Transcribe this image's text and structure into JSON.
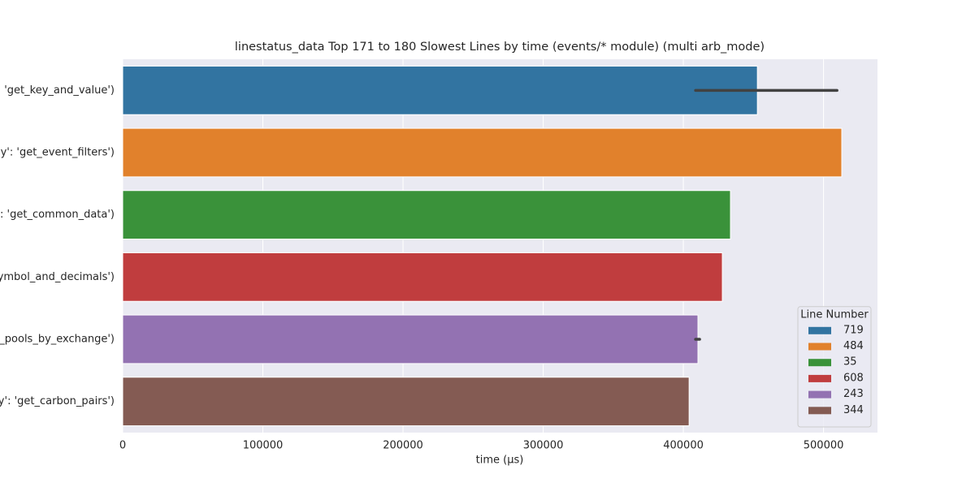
{
  "chart_data": {
    "type": "barh",
    "title": "linestatus_data Top 171 to 180 Slowest Lines by time (events/* module) (multi arb_mode)",
    "xlabel": "time (µs)",
    "categories": [
      "': 'get_key_and_value')",
      ".py': 'get_event_filters')",
      "y': 'get_common_data')",
      "symbol_and_decimals')",
      "l_pools_by_exchange')",
      "py': 'get_carbon_pairs')"
    ],
    "values": [
      452800,
      513000,
      433600,
      427800,
      410400,
      404100
    ],
    "ci": [
      [
        408700,
        509600
      ],
      null,
      null,
      null,
      [
        408700,
        411600
      ],
      null
    ],
    "colors": [
      "#3274a1",
      "#e1812c",
      "#3a923a",
      "#c03d3e",
      "#9372b2",
      "#845b53"
    ],
    "xlim": [
      0,
      538500
    ],
    "xticks": [
      0,
      100000,
      200000,
      300000,
      400000,
      500000
    ],
    "grid": true,
    "legend": {
      "title": "Line Number",
      "position": "lower right",
      "labels": [
        "719",
        "484",
        "35",
        "608",
        "243",
        "344"
      ]
    }
  }
}
